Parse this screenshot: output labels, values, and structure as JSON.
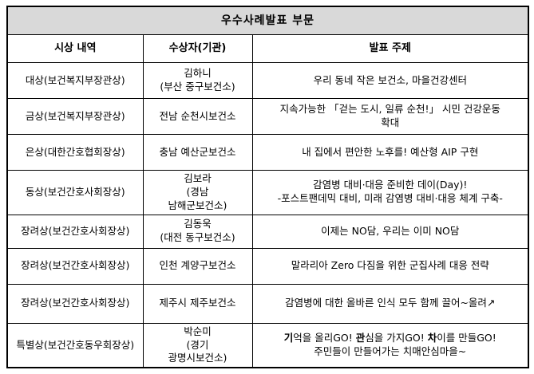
{
  "table": {
    "title": "우수사례발표 부문",
    "columns": [
      "시상 내역",
      "수상자(기관)",
      "발표 주제"
    ],
    "rows": [
      {
        "award": "대상(보건복지부장관상)",
        "winner": "김하니\n(부산 중구보건소)",
        "topic": "우리 동네 작은 보건소, 마을건강센터"
      },
      {
        "award": "금상(보건복지부장관상)",
        "winner": "전남 순천시보건소",
        "topic": "지속가능한 「걷는 도시, 일류 순천!」 시민 건강운동\n확대"
      },
      {
        "award": "은상(대한간호협회장상)",
        "winner": "충남 예산군보건소",
        "topic": "내 집에서 편안한 노후를! 예산형 AIP 구현"
      },
      {
        "award": "동상(보건간호사회장상)",
        "winner": "김보라\n(경남\n남해군보건소)",
        "topic": "감염병 대비·대응 준비한 데이(Day)!\n-포스트팬데믹 대비, 미래 감염병 대비·대응 체계 구축-"
      },
      {
        "award": "장려상(보건간호사회장상)",
        "winner": "김동욱\n(대전 동구보건소)",
        "topic": "이제는 NO담, 우리는 이미 NO담"
      },
      {
        "award": "장려상(보건간호사회장상)",
        "winner": "인천 계양구보건소",
        "topic": "말라리아 Zero 다짐을 위한 군집사례 대응 전략"
      },
      {
        "award": "장려상(보건간호사회장상)",
        "winner": "제주시 제주보건소",
        "topic": "감염병에 대한 올바른 인식 모두 함께 끌어~올려↗"
      },
      {
        "award": "특별상(보건간호동우회장상)",
        "winner": "박순미\n(경기\n광명시보건소)",
        "topic_segments": [
          {
            "text": "기",
            "bold": true
          },
          {
            "text": "억을 올리GO! ",
            "bold": false
          },
          {
            "text": "관",
            "bold": true
          },
          {
            "text": "심을 가지GO! ",
            "bold": false
          },
          {
            "text": "차",
            "bold": true
          },
          {
            "text": "이를 만들GO!\n주민들이 만들어가는 치매안심마을~",
            "bold": false
          }
        ]
      }
    ]
  },
  "colors": {
    "title_row_background": "#d9d9d9",
    "border": "#000000",
    "text": "#000000"
  }
}
